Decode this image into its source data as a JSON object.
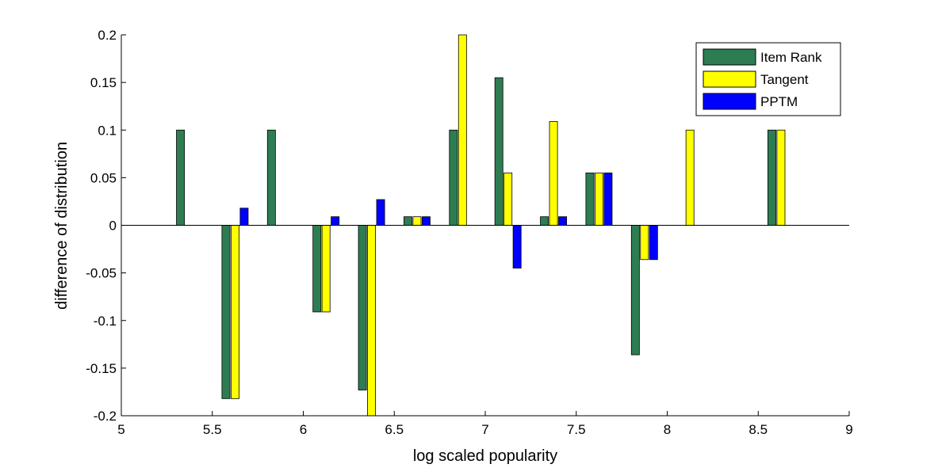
{
  "chart_data": {
    "type": "bar",
    "title": "",
    "xlabel": "log scaled popularity",
    "ylabel": "difference of distribution",
    "xlim": [
      5,
      9
    ],
    "ylim": [
      -0.2,
      0.2
    ],
    "grid": false,
    "legend_position": "top-right",
    "x_ticks": [
      "5",
      "5.5",
      "6",
      "6.5",
      "7",
      "7.5",
      "8",
      "8.5",
      "9"
    ],
    "y_ticks": [
      "-0.2",
      "-0.15",
      "-0.1",
      "-0.05",
      "0",
      "0.05",
      "0.1",
      "0.15",
      "0.2"
    ],
    "x": [
      5.375,
      5.625,
      5.875,
      6.125,
      6.375,
      6.625,
      6.875,
      7.125,
      7.375,
      7.625,
      7.875,
      8.125,
      8.375,
      8.625
    ],
    "series": [
      {
        "name": "Item Rank",
        "color": "#2e7d52",
        "values": [
          0.1,
          -0.182,
          0.1,
          -0.091,
          -0.173,
          0.009,
          0.1,
          0.155,
          0.009,
          0.055,
          -0.136,
          0,
          0,
          0.1
        ]
      },
      {
        "name": "Tangent",
        "color": "#ffff00",
        "values": [
          0,
          -0.182,
          0,
          -0.091,
          -0.2,
          0.009,
          0.2,
          0.055,
          0.109,
          0.055,
          -0.036,
          0.1,
          0,
          0.1
        ]
      },
      {
        "name": "PPTM",
        "color": "#0000ff",
        "values": [
          0,
          0.018,
          0,
          0.009,
          0.027,
          0.009,
          0,
          -0.045,
          0.009,
          0.055,
          -0.036,
          0,
          0,
          0
        ]
      }
    ]
  }
}
